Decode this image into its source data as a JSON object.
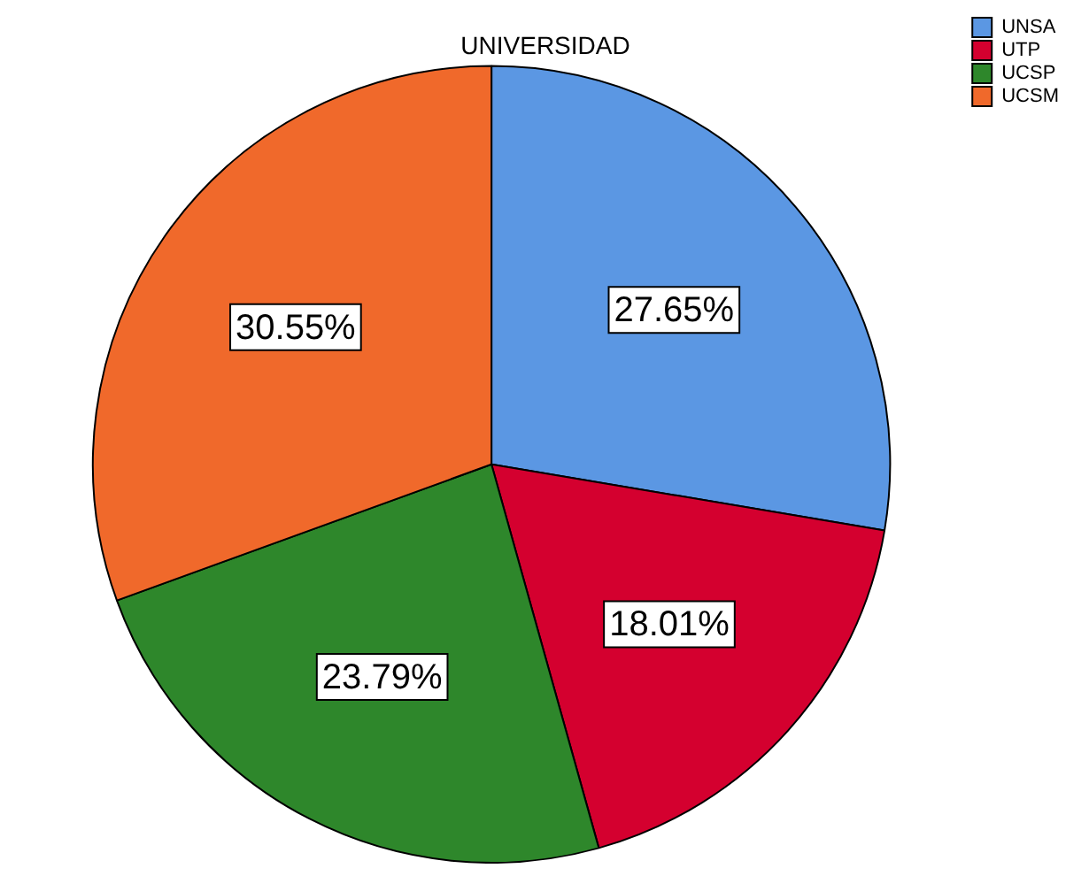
{
  "chart_data": {
    "type": "pie",
    "title": "UNIVERSIDAD",
    "categories": [
      "UNSA",
      "UTP",
      "UCSP",
      "UCSM"
    ],
    "values": [
      27.65,
      18.01,
      23.79,
      30.55
    ],
    "colors": [
      "#5b97e3",
      "#d4002f",
      "#2e872b",
      "#f0692b"
    ],
    "value_labels": [
      "27.65%",
      "18.01%",
      "23.79%",
      "30.55%"
    ],
    "legend": "top right"
  }
}
